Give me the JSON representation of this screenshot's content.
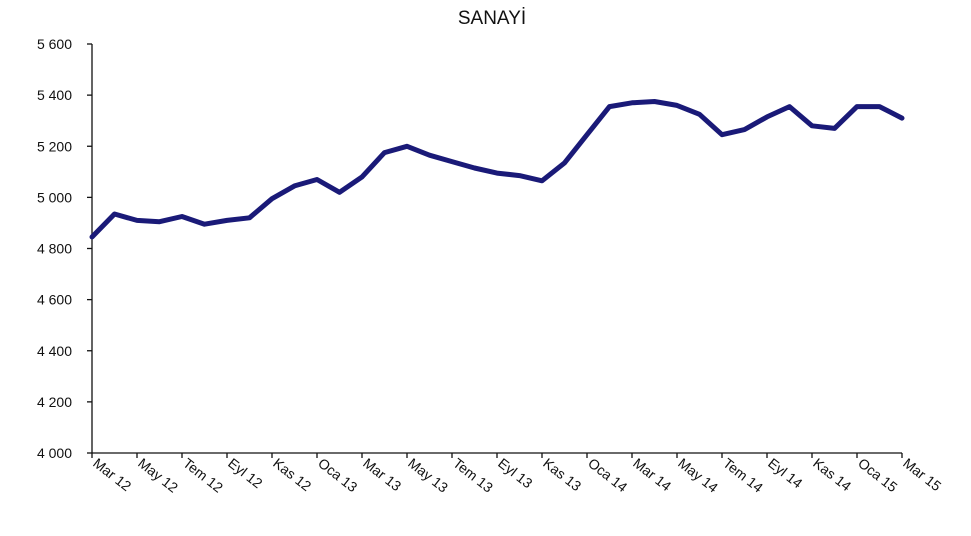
{
  "chart_data": {
    "type": "line",
    "title": "SANAYİ",
    "xlabel": "",
    "ylabel": "",
    "ylim": [
      4000,
      5600
    ],
    "y_ticks": [
      4000,
      4200,
      4400,
      4600,
      4800,
      5000,
      5200,
      5400,
      5600
    ],
    "y_tick_labels": [
      "4 000",
      "4 200",
      "4 400",
      "4 600",
      "4 800",
      "5 000",
      "5 200",
      "5 400",
      "5 600"
    ],
    "x_tick_labels": [
      "Mar 12",
      "May 12",
      "Tem 12",
      "Eyl 12",
      "Kas 12",
      "Oca 13",
      "Mar 13",
      "May 13",
      "Tem 13",
      "Eyl 13",
      "Kas 13",
      "Oca 14",
      "Mar 14",
      "May 14",
      "Tem 14",
      "Eyl 14",
      "Kas 14",
      "Oca 15",
      "Mar 15"
    ],
    "grid": false,
    "legend": "none",
    "colors": {
      "series": "#1a1a78",
      "axis": "#111111"
    },
    "series": [
      {
        "x": [
          "Mar 12",
          "Nis 12",
          "May 12",
          "Haz 12",
          "Tem 12",
          "Ağu 12",
          "Eyl 12",
          "Eki 12",
          "Kas 12",
          "Ara 12",
          "Oca 13",
          "Şub 13",
          "Mar 13",
          "Nis 13",
          "May 13",
          "Haz 13",
          "Tem 13",
          "Ağu 13",
          "Eyl 13",
          "Eki 13",
          "Kas 13",
          "Ara 13",
          "Oca 14",
          "Şub 14",
          "Mar 14",
          "Nis 14",
          "May 14",
          "Haz 14",
          "Tem 14",
          "Ağu 14",
          "Eyl 14",
          "Eki 14",
          "Kas 14",
          "Ara 14",
          "Oca 15",
          "Şub 15",
          "Mar 15"
        ],
        "values": [
          4845,
          4935,
          4910,
          4905,
          4925,
          4895,
          4910,
          4920,
          4995,
          5045,
          5070,
          5020,
          5080,
          5175,
          5200,
          5165,
          5140,
          5115,
          5095,
          5085,
          5065,
          5135,
          5245,
          5355,
          5370,
          5375,
          5360,
          5325,
          5245,
          5265,
          5315,
          5355,
          5280,
          5270,
          5355,
          5355,
          5310
        ]
      }
    ]
  }
}
